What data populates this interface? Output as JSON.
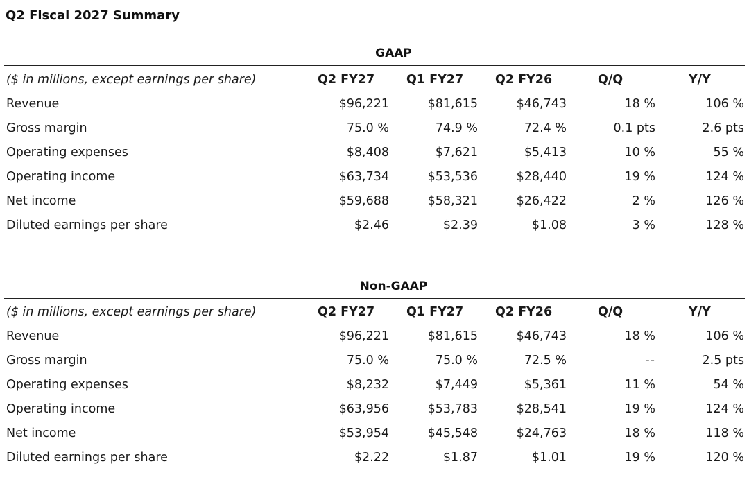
{
  "page": {
    "title": "Q2 Fiscal 2027 Summary"
  },
  "gaap": {
    "heading": "GAAP",
    "header": {
      "label": "($ in millions, except earnings per share)",
      "cols": [
        "Q2 FY27",
        "Q1 FY27",
        "Q2 FY26",
        "Q/Q",
        "Y/Y"
      ]
    },
    "rows": [
      {
        "label": "Revenue",
        "q2fy27": "$96,221",
        "q1fy27": "$81,615",
        "q2fy26": "$46,743",
        "qq": "18 %",
        "yy": "106 %"
      },
      {
        "label": "Gross margin",
        "q2fy27": "75.0 %",
        "q1fy27": "74.9 %",
        "q2fy26": "72.4 %",
        "qq": "0.1 pts",
        "yy": "2.6 pts"
      },
      {
        "label": "Operating expenses",
        "q2fy27": "$8,408",
        "q1fy27": "$7,621",
        "q2fy26": "$5,413",
        "qq": "10 %",
        "yy": "55 %"
      },
      {
        "label": "Operating income",
        "q2fy27": "$63,734",
        "q1fy27": "$53,536",
        "q2fy26": "$28,440",
        "qq": "19 %",
        "yy": "124 %"
      },
      {
        "label": "Net income",
        "q2fy27": "$59,688",
        "q1fy27": "$58,321",
        "q2fy26": "$26,422",
        "qq": "2 %",
        "yy": "126 %"
      },
      {
        "label": "Diluted earnings per share",
        "q2fy27": "$2.46",
        "q1fy27": "$2.39",
        "q2fy26": "$1.08",
        "qq": "3 %",
        "yy": "128 %"
      }
    ]
  },
  "nongaap": {
    "heading": "Non-GAAP",
    "header": {
      "label": "($ in millions, except earnings per share)",
      "cols": [
        "Q2 FY27",
        "Q1 FY27",
        "Q2 FY26",
        "Q/Q",
        "Y/Y"
      ]
    },
    "rows": [
      {
        "label": "Revenue",
        "q2fy27": "$96,221",
        "q1fy27": "$81,615",
        "q2fy26": "$46,743",
        "qq": "18 %",
        "yy": "106 %"
      },
      {
        "label": "Gross margin",
        "q2fy27": "75.0 %",
        "q1fy27": "75.0 %",
        "q2fy26": "72.5 %",
        "qq": "--",
        "yy": "2.5 pts"
      },
      {
        "label": "Operating expenses",
        "q2fy27": "$8,232",
        "q1fy27": "$7,449",
        "q2fy26": "$5,361",
        "qq": "11 %",
        "yy": "54 %"
      },
      {
        "label": "Operating income",
        "q2fy27": "$63,956",
        "q1fy27": "$53,783",
        "q2fy26": "$28,541",
        "qq": "19 %",
        "yy": "124 %"
      },
      {
        "label": "Net income",
        "q2fy27": "$53,954",
        "q1fy27": "$45,548",
        "q2fy26": "$24,763",
        "qq": "18 %",
        "yy": "118 %"
      },
      {
        "label": "Diluted earnings per share",
        "q2fy27": "$2.22",
        "q1fy27": "$1.87",
        "q2fy26": "$1.01",
        "qq": "19 %",
        "yy": "120 %"
      }
    ]
  }
}
